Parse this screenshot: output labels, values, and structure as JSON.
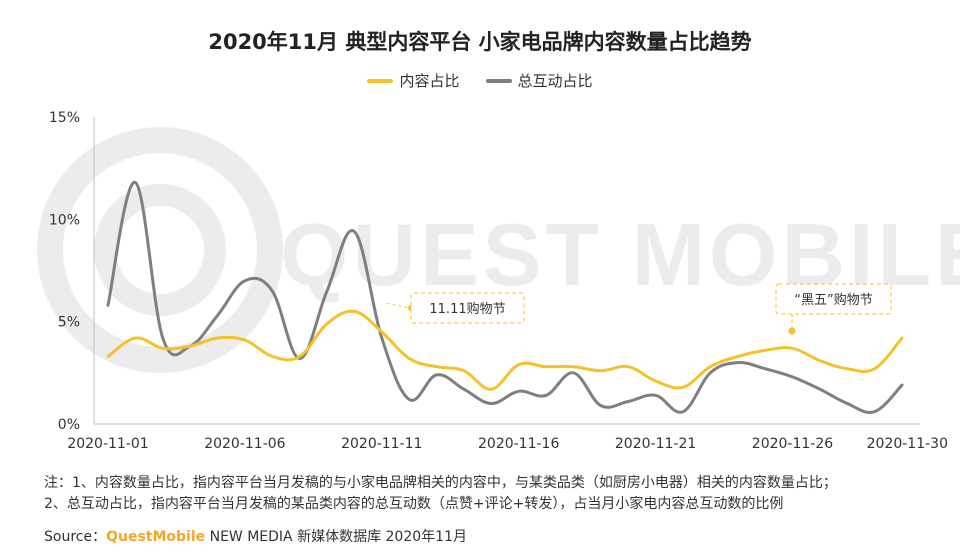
{
  "title": "2020年11月 典型内容平台 小家电品牌内容数量占比趋势",
  "legend": [
    {
      "label": "内容占比",
      "color": "#f5c12b"
    },
    {
      "label": "总互动占比",
      "color": "#7f7f7f"
    }
  ],
  "watermark": "QUEST MOBILE",
  "chart_data": {
    "type": "line",
    "title": "2020年11月 典型内容平台 小家电品牌内容数量占比趋势",
    "xlabel": "",
    "ylabel": "",
    "ylim": [
      0,
      15
    ],
    "yticks": [
      0,
      5,
      10,
      15
    ],
    "ytick_labels": [
      "0%",
      "5%",
      "10%",
      "15%"
    ],
    "x": [
      "2020-11-01",
      "2020-11-02",
      "2020-11-03",
      "2020-11-04",
      "2020-11-05",
      "2020-11-06",
      "2020-11-07",
      "2020-11-08",
      "2020-11-09",
      "2020-11-10",
      "2020-11-11",
      "2020-11-12",
      "2020-11-13",
      "2020-11-14",
      "2020-11-15",
      "2020-11-16",
      "2020-11-17",
      "2020-11-18",
      "2020-11-19",
      "2020-11-20",
      "2020-11-21",
      "2020-11-22",
      "2020-11-23",
      "2020-11-24",
      "2020-11-25",
      "2020-11-26",
      "2020-11-27",
      "2020-11-28",
      "2020-11-29",
      "2020-11-30"
    ],
    "xtick_labels": [
      "2020-11-01",
      "2020-11-06",
      "2020-11-11",
      "2020-11-16",
      "2020-11-21",
      "2020-11-26",
      "2020-11-30"
    ],
    "series": [
      {
        "name": "内容占比",
        "color": "#f5c12b",
        "values": [
          3.3,
          4.2,
          3.7,
          3.8,
          4.2,
          4.1,
          3.3,
          3.3,
          4.9,
          5.5,
          4.5,
          3.2,
          2.8,
          2.6,
          1.7,
          2.9,
          2.8,
          2.8,
          2.6,
          2.8,
          2.1,
          1.8,
          2.8,
          3.3,
          3.6,
          3.7,
          3.1,
          2.7,
          2.7,
          4.2
        ]
      },
      {
        "name": "总互动占比",
        "color": "#7f7f7f",
        "values": [
          5.8,
          11.8,
          4.2,
          3.8,
          5.3,
          7.0,
          6.5,
          3.2,
          6.5,
          9.4,
          4.2,
          1.2,
          2.4,
          1.7,
          1.0,
          1.6,
          1.4,
          2.5,
          0.9,
          1.1,
          1.4,
          0.6,
          2.5,
          3.0,
          2.7,
          2.3,
          1.7,
          1.0,
          0.6,
          1.9
        ]
      }
    ],
    "annotations": [
      {
        "text": "11.11购物节",
        "x": "2020-11-11",
        "y": 5.5
      },
      {
        "text": "“黑五”购物节",
        "x": "2020-11-27",
        "y": 4.5
      }
    ]
  },
  "notes": {
    "line1": "注：1、内容数量占比，指内容平台当月发稿的与小家电品牌相关的内容中，与某类品类（如厨房小电器）相关的内容数量占比；",
    "line2": "2、总互动占比，指内容平台当月发稿的某品类内容的总互动数（点赞+评论+转发），占当月小家电内容总互动数的比例"
  },
  "source": {
    "prefix": "Source：",
    "brand": "QuestMobile",
    "suffix": " NEW MEDIA 新媒体数据库 2020年11月"
  }
}
